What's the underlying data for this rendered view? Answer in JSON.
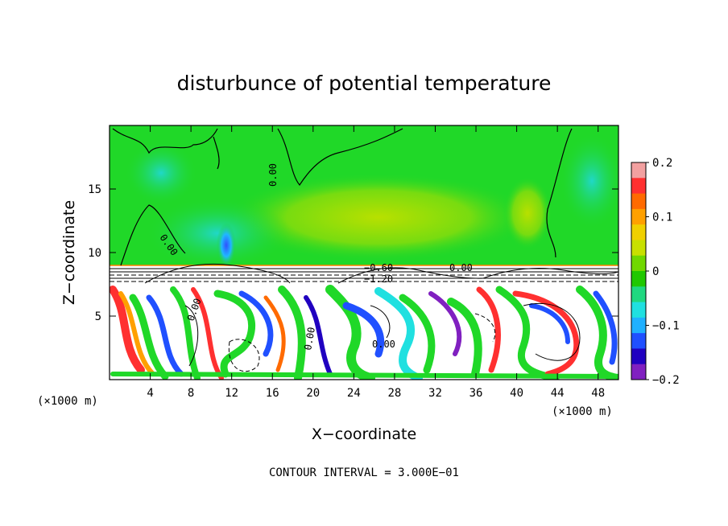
{
  "chart_data": {
    "type": "heatmap",
    "title": "disturbunce of potential temperature",
    "xlabel": "X−coordinate",
    "ylabel": "Z−coordinate",
    "x_unit": "(×1000 m)",
    "z_unit": "(×1000 m)",
    "xlim": [
      0,
      50
    ],
    "ylim": [
      0,
      20
    ],
    "x_ticks": [
      4,
      8,
      12,
      16,
      20,
      24,
      28,
      32,
      36,
      40,
      44,
      48
    ],
    "x_tick_labels": [
      "4",
      "8",
      "12",
      "16",
      "20",
      "24",
      "28",
      "32",
      "36",
      "40",
      "44",
      "48"
    ],
    "y_ticks": [
      5,
      10,
      15
    ],
    "y_tick_labels": [
      "5",
      "10",
      "15"
    ],
    "colorbar": {
      "range": [
        -0.2,
        0.2
      ],
      "ticks": [
        0.2,
        0.1,
        0,
        -0.1,
        -0.2
      ],
      "tick_labels": [
        "0.2",
        "0.1",
        "0",
        "−0.1",
        "−0.2"
      ],
      "colors": [
        "#f2a0a0",
        "#ff3030",
        "#ff6a00",
        "#ffa000",
        "#f0d000",
        "#c8e000",
        "#70d800",
        "#20c800",
        "#20d880",
        "#20e0e0",
        "#20b0ff",
        "#2050ff",
        "#2000c0",
        "#8020c0"
      ]
    },
    "contour_labels": [
      "0.00",
      "0.00",
      "−0.60",
      "−1.20",
      "0.00",
      "0.00",
      "0.00",
      "0.00"
    ],
    "contour_interval_text": "CONTOUR INTERVAL =  3.000E−01"
  },
  "colors": {
    "upper_field": "#20d828",
    "stable_layer": "#ffffff",
    "lower_white": "#ffffff"
  }
}
